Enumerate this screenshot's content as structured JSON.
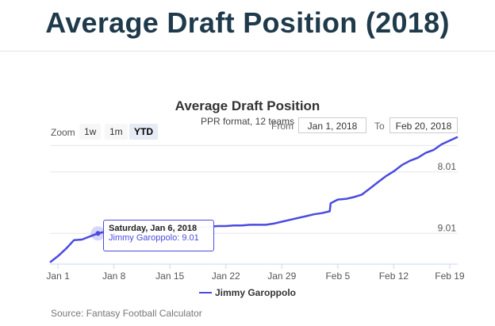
{
  "page": {
    "title": "Average Draft Position (2018)",
    "source": "Source: Fantasy Football Calculator"
  },
  "toolbar": {
    "zoom_label": "Zoom",
    "zoom_options": [
      "1w",
      "1m",
      "YTD"
    ],
    "active_zoom": "YTD",
    "from_label": "From",
    "from_value": "Jan 1, 2018",
    "to_label": "To",
    "to_value": "Feb 20, 2018"
  },
  "tooltip": {
    "date": "Saturday, Jan 6, 2018",
    "series": "Jimmy Garoppolo",
    "value": "9.01"
  },
  "colors": {
    "series": "#4b4be0",
    "title": "#1f3a4b"
  },
  "chart_data": {
    "type": "line",
    "title": "Average Draft Position",
    "subtitle": "PPR format, 12 teams",
    "legend": "bottom-center",
    "grid": true,
    "y_reversed": true,
    "ylim": [
      7.51,
      9.51
    ],
    "ytick_labels": [
      "8.01",
      "9.01"
    ],
    "ytick_values": [
      8.01,
      9.01
    ],
    "xtick_labels": [
      "Jan 1",
      "Jan 8",
      "Jan 15",
      "Jan 22",
      "Jan 29",
      "Feb 5",
      "Feb 12",
      "Feb 19"
    ],
    "xtick_days": [
      1,
      8,
      15,
      22,
      29,
      36,
      43,
      50
    ],
    "series": [
      {
        "name": "Jimmy Garoppolo",
        "day": [
          0,
          1,
          2,
          3,
          4,
          5,
          6,
          7,
          8,
          9,
          10,
          11,
          12,
          13,
          14,
          15,
          16,
          17,
          18,
          19,
          20,
          21,
          22,
          23,
          24,
          25,
          26,
          27,
          28,
          29,
          30,
          31,
          32,
          33,
          34,
          35,
          35.1,
          36,
          37,
          38,
          39,
          40,
          41,
          42,
          43,
          44,
          45,
          46,
          47,
          48,
          49,
          50,
          51
        ],
        "values": [
          9.48,
          9.38,
          9.26,
          9.12,
          9.11,
          9.06,
          9.01,
          8.98,
          8.97,
          8.97,
          8.96,
          8.95,
          8.95,
          8.94,
          8.94,
          8.93,
          8.93,
          8.92,
          8.92,
          8.91,
          8.9,
          8.89,
          8.89,
          8.88,
          8.88,
          8.87,
          8.87,
          8.87,
          8.85,
          8.82,
          8.79,
          8.76,
          8.73,
          8.7,
          8.68,
          8.65,
          8.52,
          8.46,
          8.45,
          8.42,
          8.38,
          8.28,
          8.18,
          8.08,
          8.0,
          7.9,
          7.83,
          7.78,
          7.7,
          7.65,
          7.56,
          7.5,
          7.44
        ]
      }
    ]
  }
}
